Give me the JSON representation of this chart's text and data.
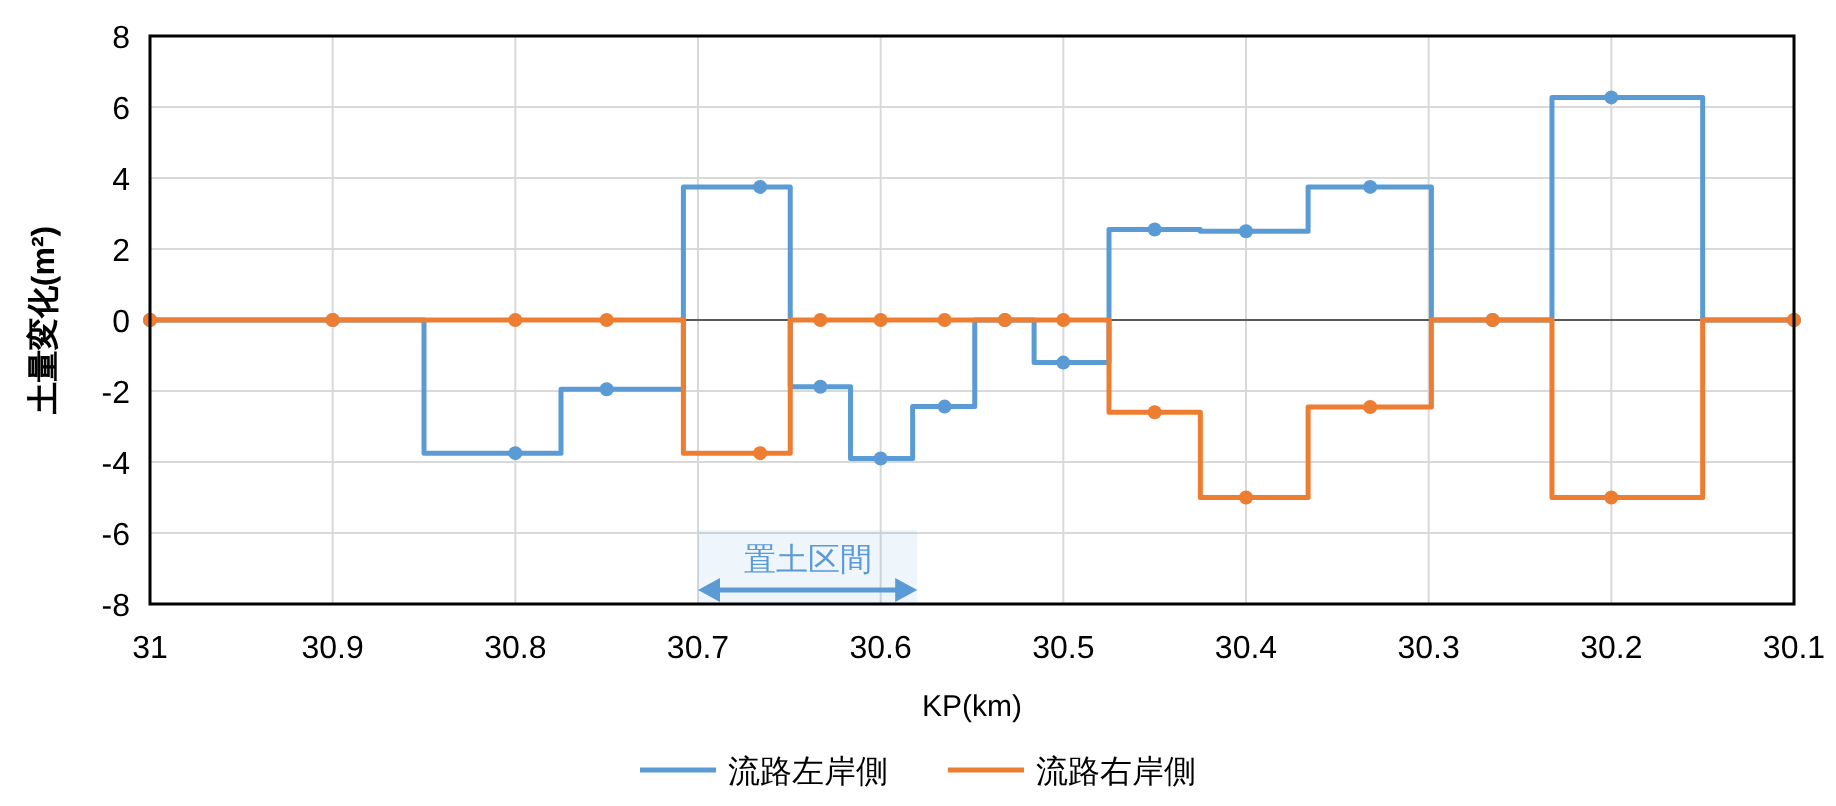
{
  "chart_data": {
    "type": "step",
    "xlabel": "KP(km)",
    "ylabel": "土量変化(m²)",
    "x": [
      31,
      30.9,
      30.8,
      30.75,
      30.666,
      30.633,
      30.6,
      30.565,
      30.532,
      30.5,
      30.45,
      30.4,
      30.332,
      30.265,
      30.2,
      30.1
    ],
    "xlim": [
      31,
      30.1
    ],
    "xticks": [
      31,
      30.9,
      30.8,
      30.7,
      30.6,
      30.5,
      30.4,
      30.3,
      30.2,
      30.1
    ],
    "ylim": [
      -8,
      8
    ],
    "yticks": [
      -8,
      -6,
      -4,
      -2,
      0,
      2,
      4,
      6,
      8
    ],
    "grid": true,
    "marker": "circle",
    "line_style": "solid",
    "legend": "bottom",
    "ref_lines": [
      {
        "axis": "y",
        "value": 0,
        "color": "#595959"
      }
    ],
    "bands": [
      {
        "axis": "x",
        "from": 30.7,
        "to": 30.58,
        "label": "置土区間",
        "color": "#5b9bd5"
      }
    ],
    "series": [
      {
        "name": "流路左岸側",
        "color": "#5b9bd5",
        "values": [
          0,
          0,
          -3.75,
          -1.95,
          3.75,
          -1.88,
          -3.9,
          -2.44,
          0,
          -1.2,
          2.55,
          2.5,
          3.75,
          0,
          6.27,
          0
        ]
      },
      {
        "name": "流路右岸側",
        "color": "#ed7d31",
        "values": [
          0,
          0,
          0,
          0,
          -3.75,
          0,
          0,
          0,
          0,
          0,
          -2.6,
          -5,
          -2.45,
          0,
          -5,
          0
        ]
      }
    ]
  }
}
